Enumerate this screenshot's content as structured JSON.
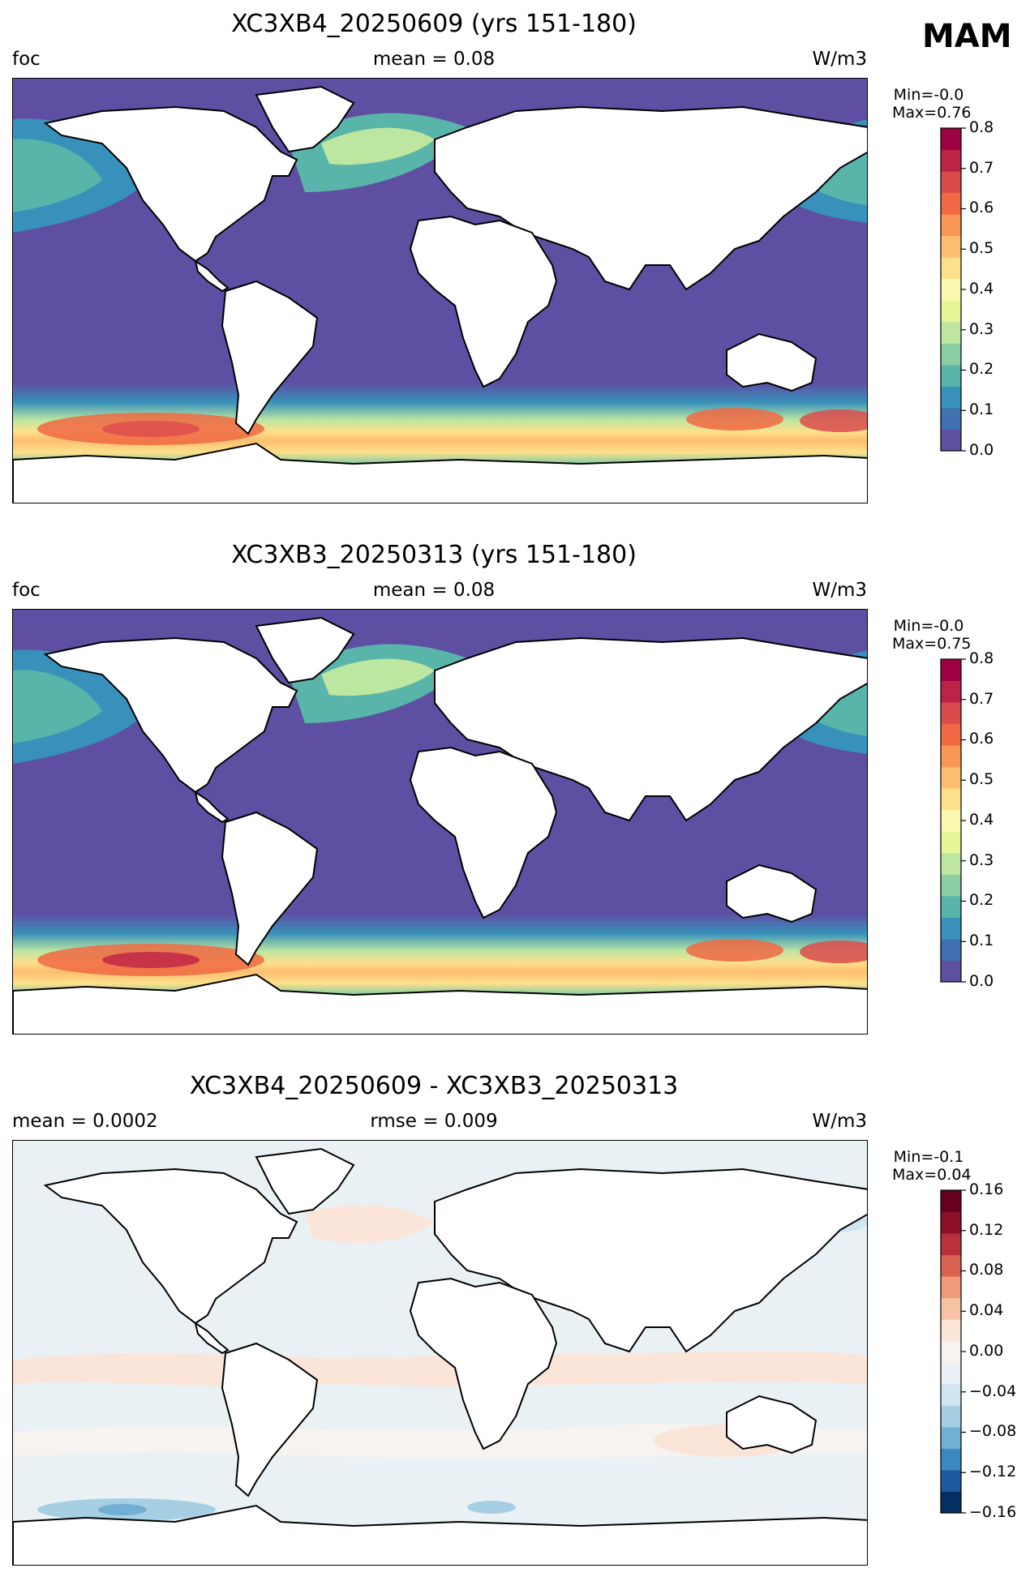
{
  "season": "MAM",
  "panels": [
    {
      "title": "XC3XB4_20250609 (yrs 151-180)",
      "left_label": "foc",
      "center_label": "mean = 0.08",
      "units": "W/m3",
      "min_label": "Min=-0.0",
      "max_label": "Max=0.76",
      "colorbar": {
        "ticks": [
          "0.0",
          "0.1",
          "0.2",
          "0.3",
          "0.4",
          "0.5",
          "0.6",
          "0.7",
          "0.8"
        ],
        "colors": [
          "#5e4fa2",
          "#3f71b1",
          "#3891bb",
          "#59b4aa",
          "#8acfa4",
          "#bde6a1",
          "#e6f598",
          "#fbf8b0",
          "#fee08b",
          "#fdbe6f",
          "#fa9656",
          "#f06943",
          "#dc4b4c",
          "#bd2247",
          "#9e0142"
        ]
      }
    },
    {
      "title": "XC3XB3_20250313 (yrs 151-180)",
      "left_label": "foc",
      "center_label": "mean = 0.08",
      "units": "W/m3",
      "min_label": "Min=-0.0",
      "max_label": "Max=0.75",
      "colorbar": {
        "ticks": [
          "0.0",
          "0.1",
          "0.2",
          "0.3",
          "0.4",
          "0.5",
          "0.6",
          "0.7",
          "0.8"
        ],
        "colors": [
          "#5e4fa2",
          "#3f71b1",
          "#3891bb",
          "#59b4aa",
          "#8acfa4",
          "#bde6a1",
          "#e6f598",
          "#fbf8b0",
          "#fee08b",
          "#fdbe6f",
          "#fa9656",
          "#f06943",
          "#dc4b4c",
          "#bd2247",
          "#9e0142"
        ]
      }
    },
    {
      "title": "XC3XB4_20250609 - XC3XB3_20250313",
      "left_label": "mean = 0.0002",
      "center_label": "rmse = 0.009",
      "units": "W/m3",
      "min_label": "Min=-0.1",
      "max_label": "Max=0.04",
      "colorbar": {
        "ticks": [
          "−0.16",
          "−0.12",
          "−0.08",
          "−0.04",
          "0.00",
          "0.04",
          "0.08",
          "0.12",
          "0.16"
        ],
        "colors": [
          "#053061",
          "#1d5a9e",
          "#3b88c0",
          "#71afd4",
          "#a6cfe4",
          "#d1e5f0",
          "#eaf1f5",
          "#f7f3f0",
          "#fbe4d8",
          "#f8c3a5",
          "#ef9b79",
          "#d96452",
          "#b8313d",
          "#8e0f28",
          "#67001f"
        ]
      }
    }
  ]
}
